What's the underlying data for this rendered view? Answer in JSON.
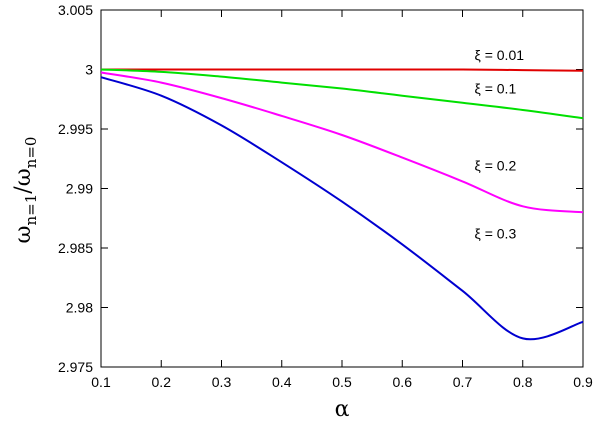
{
  "chart_data": {
    "type": "line",
    "xlabel": "α",
    "ylabel_main": "ω",
    "ylabel_sub1": "n=1",
    "ylabel_sep": "/ω",
    "ylabel_sub2": "n=0",
    "xlim": [
      0.1,
      0.9
    ],
    "ylim": [
      2.975,
      3.005
    ],
    "grid": false,
    "xticks": [
      "0.1",
      "0.2",
      "0.3",
      "0.4",
      "0.5",
      "0.6",
      "0.7",
      "0.8",
      "0.9"
    ],
    "yticks": [
      "2.975",
      "2.98",
      "2.985",
      "2.99",
      "2.995",
      "3",
      "3.005"
    ],
    "xtick_values": [
      0.1,
      0.2,
      0.3,
      0.4,
      0.5,
      0.6,
      0.7,
      0.8,
      0.9
    ],
    "ytick_values": [
      2.975,
      2.98,
      2.985,
      2.99,
      2.995,
      3.0,
      3.005
    ],
    "x": [
      0.1,
      0.2,
      0.3,
      0.4,
      0.5,
      0.6,
      0.7,
      0.8,
      0.9
    ],
    "series": [
      {
        "name": "ξ = 0.01",
        "color": "#e00000",
        "label_at": [
          0.72,
          3.0008
        ],
        "values": [
          3.0,
          3.0,
          3.0,
          3.0,
          3.0,
          3.0,
          3.0,
          2.99995,
          2.9999
        ]
      },
      {
        "name": "ξ = 0.1",
        "color": "#00e000",
        "label_at": [
          0.72,
          2.998
        ],
        "values": [
          3.0,
          2.9998,
          2.9994,
          2.9989,
          2.9984,
          2.9978,
          2.9972,
          2.9966,
          2.9959
        ]
      },
      {
        "name": "ξ = 0.2",
        "color": "#ff00ff",
        "label_at": [
          0.72,
          2.9915
        ],
        "values": [
          2.99975,
          2.9989,
          2.9976,
          2.9961,
          2.9945,
          2.9926,
          2.9906,
          2.9885,
          2.988
        ]
      },
      {
        "name": "ξ = 0.3",
        "color": "#0000d0",
        "label_at": [
          0.72,
          2.9858
        ],
        "values": [
          2.99935,
          2.9978,
          2.9953,
          2.9922,
          2.9889,
          2.9853,
          2.9814,
          2.9774,
          2.9788
        ]
      }
    ]
  }
}
